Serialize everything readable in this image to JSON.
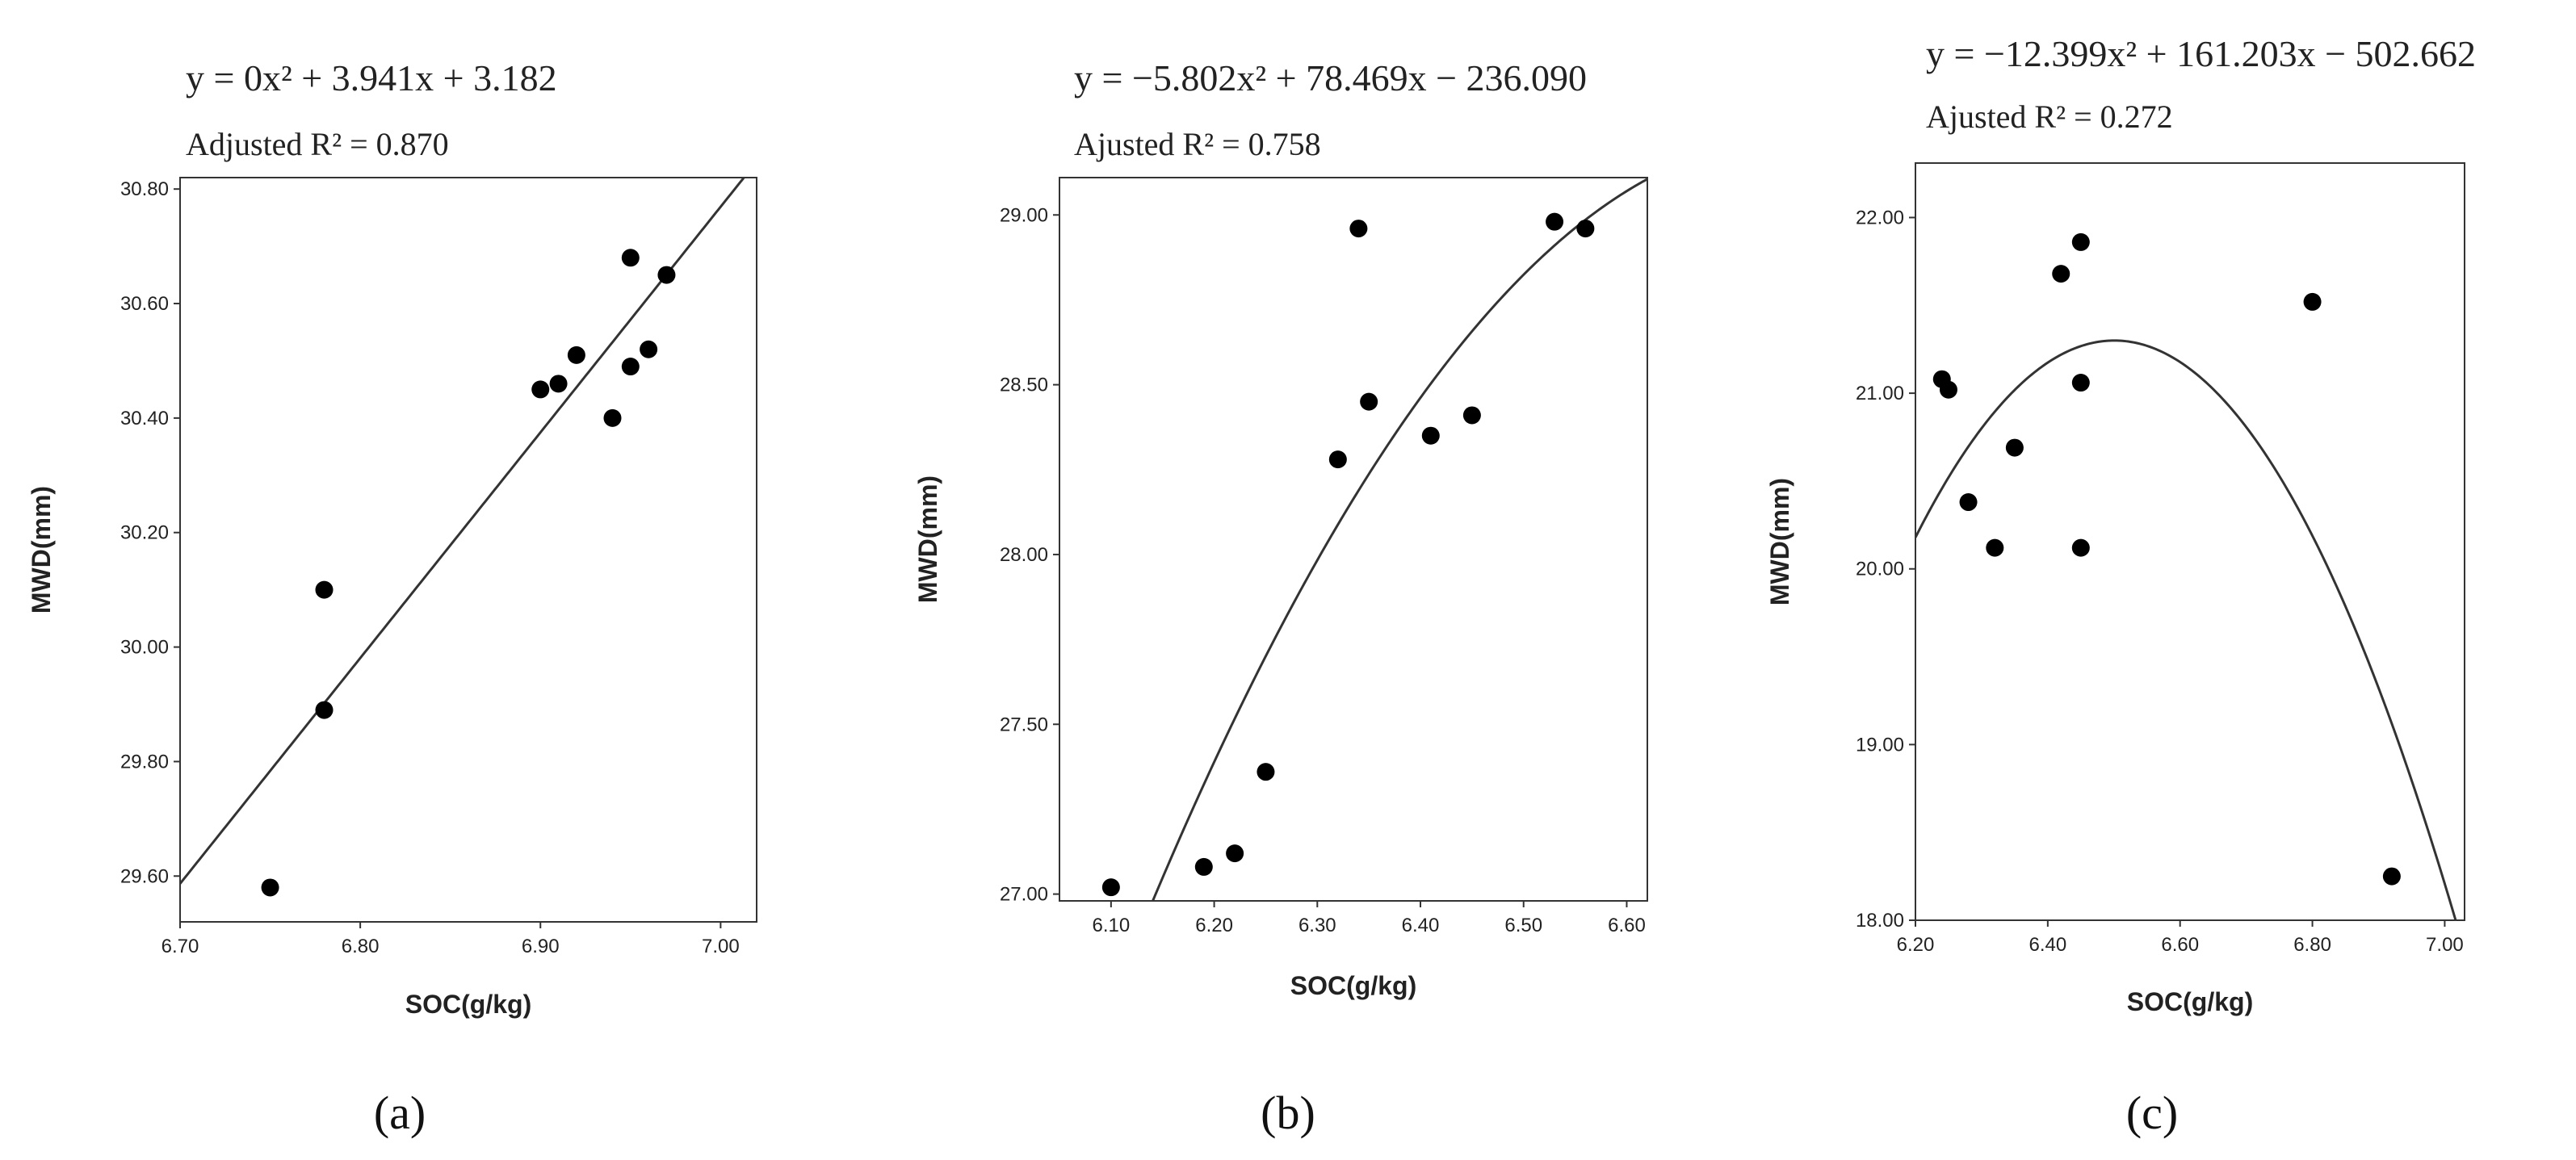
{
  "chart_data": [
    {
      "type": "scatter",
      "panel_label": "(a)",
      "equation": "y = 0x² + 3.941x + 3.182",
      "r2_text": "Adjusted R² = 0.870",
      "xlabel": "SOC(g/kg)",
      "ylabel": "MWD(mm)",
      "xlim": [
        6.7,
        7.02
      ],
      "ylim": [
        29.52,
        30.82
      ],
      "xticks": [
        6.7,
        6.8,
        6.9,
        7.0
      ],
      "yticks": [
        29.6,
        29.8,
        30.0,
        30.2,
        30.4,
        30.6,
        30.8
      ],
      "xtick_labels": [
        "6.70",
        "6.80",
        "6.90",
        "7.00"
      ],
      "ytick_labels": [
        "29.60",
        "29.80",
        "30.00",
        "30.20",
        "30.40",
        "30.60",
        "30.80"
      ],
      "fit": {
        "a": 0,
        "b": 3.941,
        "c": 3.182
      },
      "points": [
        {
          "x": 6.75,
          "y": 29.58
        },
        {
          "x": 6.78,
          "y": 29.89
        },
        {
          "x": 6.78,
          "y": 30.1
        },
        {
          "x": 6.9,
          "y": 30.45
        },
        {
          "x": 6.91,
          "y": 30.46
        },
        {
          "x": 6.92,
          "y": 30.51
        },
        {
          "x": 6.94,
          "y": 30.4
        },
        {
          "x": 6.95,
          "y": 30.49
        },
        {
          "x": 6.95,
          "y": 30.68
        },
        {
          "x": 6.96,
          "y": 30.52
        },
        {
          "x": 6.97,
          "y": 30.65
        }
      ]
    },
    {
      "type": "scatter",
      "panel_label": "(b)",
      "equation": "y = −5.802x² + 78.469x − 236.090",
      "r2_text": "Ajusted R² = 0.758",
      "xlabel": "SOC(g/kg)",
      "ylabel": "MWD(mm)",
      "xlim": [
        6.05,
        6.62
      ],
      "ylim": [
        26.98,
        29.11
      ],
      "xticks": [
        6.1,
        6.2,
        6.3,
        6.4,
        6.5,
        6.6
      ],
      "yticks": [
        27.0,
        27.5,
        28.0,
        28.5,
        29.0
      ],
      "xtick_labels": [
        "6.10",
        "6.20",
        "6.30",
        "6.40",
        "6.50",
        "6.60"
      ],
      "ytick_labels": [
        "27.00",
        "27.50",
        "28.00",
        "28.50",
        "29.00"
      ],
      "fit": {
        "a": -5.802,
        "b": 78.469,
        "c": -236.09
      },
      "points": [
        {
          "x": 6.1,
          "y": 27.02
        },
        {
          "x": 6.19,
          "y": 27.08
        },
        {
          "x": 6.22,
          "y": 27.12
        },
        {
          "x": 6.25,
          "y": 27.36
        },
        {
          "x": 6.32,
          "y": 28.28
        },
        {
          "x": 6.34,
          "y": 28.96
        },
        {
          "x": 6.35,
          "y": 28.45
        },
        {
          "x": 6.41,
          "y": 28.35
        },
        {
          "x": 6.45,
          "y": 28.41
        },
        {
          "x": 6.53,
          "y": 28.98
        },
        {
          "x": 6.56,
          "y": 28.96
        }
      ]
    },
    {
      "type": "scatter",
      "panel_label": "(c)",
      "equation": "y = −12.399x² + 161.203x − 502.662",
      "r2_text": "Ajusted R² = 0.272",
      "xlabel": "SOC(g/kg)",
      "ylabel": "MWD(mm)",
      "xlim": [
        6.2,
        7.03
      ],
      "ylim": [
        18.0,
        22.31
      ],
      "xticks": [
        6.2,
        6.4,
        6.6,
        6.8,
        7.0
      ],
      "yticks": [
        18.0,
        19.0,
        20.0,
        21.0,
        22.0
      ],
      "xtick_labels": [
        "6.20",
        "6.40",
        "6.60",
        "6.80",
        "7.00"
      ],
      "ytick_labels": [
        "18.00",
        "19.00",
        "20.00",
        "21.00",
        "22.00"
      ],
      "fit": {
        "a": -12.399,
        "b": 161.203,
        "c": -502.662
      },
      "points": [
        {
          "x": 6.24,
          "y": 21.08
        },
        {
          "x": 6.25,
          "y": 21.02
        },
        {
          "x": 6.28,
          "y": 20.38
        },
        {
          "x": 6.32,
          "y": 20.12
        },
        {
          "x": 6.35,
          "y": 20.69
        },
        {
          "x": 6.42,
          "y": 21.68
        },
        {
          "x": 6.45,
          "y": 21.86
        },
        {
          "x": 6.45,
          "y": 21.06
        },
        {
          "x": 6.45,
          "y": 20.12
        },
        {
          "x": 6.8,
          "y": 21.52
        },
        {
          "x": 6.92,
          "y": 18.25
        }
      ]
    }
  ]
}
